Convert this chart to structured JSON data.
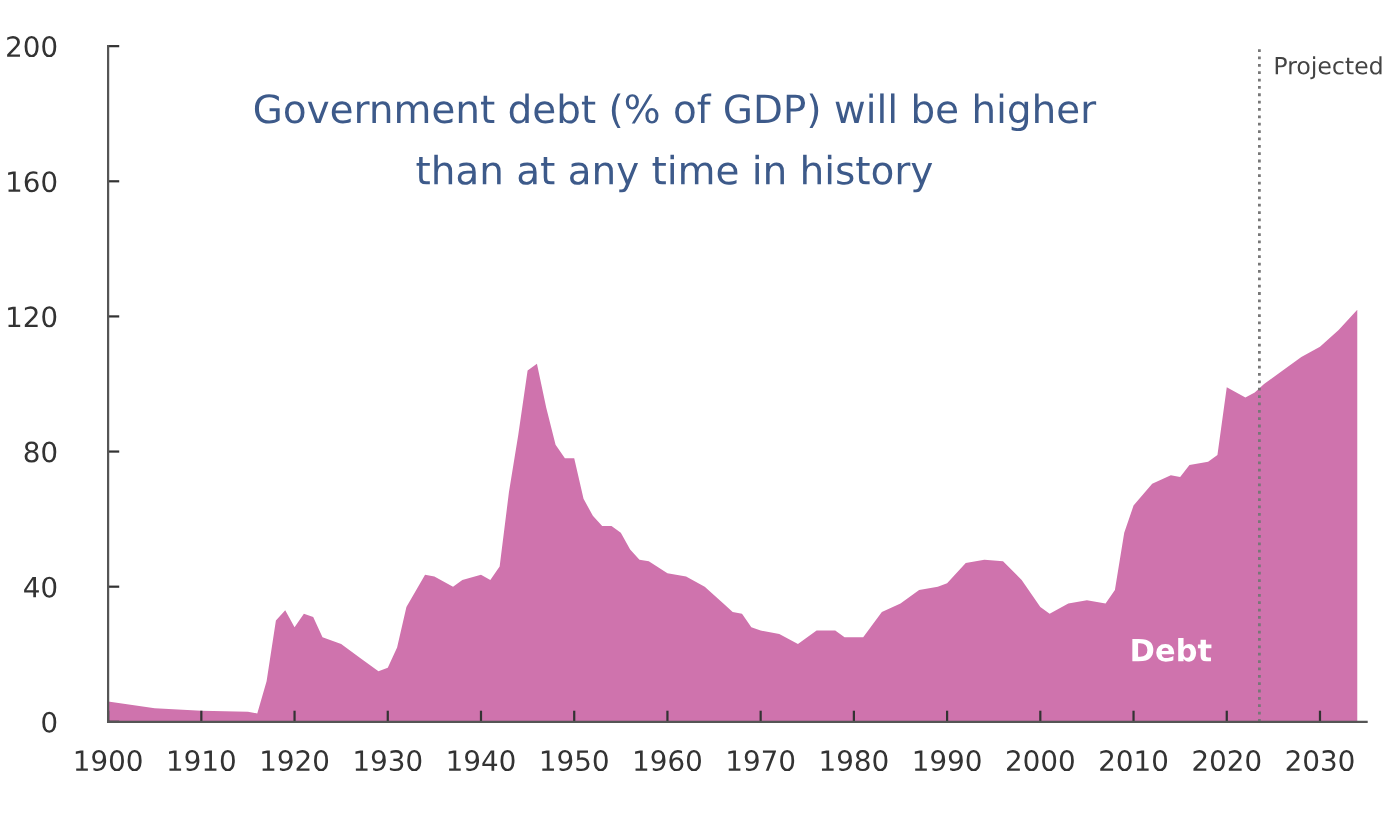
{
  "chart_data": {
    "type": "area",
    "title": "Government debt (% of GDP) will be higher\nthan at any time in history",
    "x": [
      1900,
      1905,
      1910,
      1915,
      1916,
      1917,
      1918,
      1919,
      1920,
      1921,
      1922,
      1923,
      1925,
      1927,
      1929,
      1930,
      1931,
      1932,
      1934,
      1935,
      1937,
      1938,
      1940,
      1941,
      1942,
      1943,
      1944,
      1945,
      1946,
      1947,
      1948,
      1949,
      1950,
      1951,
      1952,
      1953,
      1954,
      1955,
      1956,
      1957,
      1958,
      1960,
      1962,
      1964,
      1966,
      1967,
      1968,
      1969,
      1970,
      1972,
      1974,
      1976,
      1978,
      1979,
      1981,
      1983,
      1985,
      1987,
      1989,
      1990,
      1992,
      1994,
      1996,
      1998,
      2000,
      2001,
      2003,
      2005,
      2007,
      2008,
      2009,
      2010,
      2012,
      2014,
      2015,
      2016,
      2018,
      2019,
      2020,
      2022,
      2023,
      2024,
      2026,
      2028,
      2030,
      2032,
      2034
    ],
    "series": [
      {
        "name": "Debt",
        "color": "#cf73ad",
        "values": [
          6,
          4,
          3.3,
          3,
          2.5,
          12,
          30,
          33,
          28,
          32,
          31,
          25,
          23,
          19,
          15,
          16,
          22,
          34,
          43.5,
          43,
          40,
          42,
          43.5,
          42,
          46,
          68,
          85,
          104,
          106,
          93,
          82,
          78,
          78,
          66,
          61,
          58,
          58,
          56,
          51,
          48,
          47.5,
          44,
          43,
          40,
          35,
          32.5,
          32,
          28,
          27,
          26,
          23,
          27,
          27,
          25,
          25,
          32.5,
          35,
          39,
          40,
          41,
          47,
          48,
          47.5,
          42,
          34,
          32,
          35,
          36,
          35,
          39,
          56,
          64,
          70.5,
          73,
          72.5,
          76,
          77,
          79,
          99,
          96,
          97.5,
          100,
          104,
          108,
          111,
          116,
          122
        ]
      }
    ],
    "xlim": [
      1900,
      2035
    ],
    "ylim": [
      0,
      200
    ],
    "xticks": [
      1900,
      1910,
      1920,
      1930,
      1940,
      1950,
      1960,
      1970,
      1980,
      1990,
      2000,
      2010,
      2020,
      2030
    ],
    "yticks": [
      0,
      40,
      80,
      120,
      160,
      200
    ],
    "ref_lines": [
      {
        "axis": "x",
        "value": 2023.5,
        "label": "Projected",
        "color": "#777777",
        "line_style": "dotted"
      }
    ],
    "grid": false,
    "legend": false
  }
}
